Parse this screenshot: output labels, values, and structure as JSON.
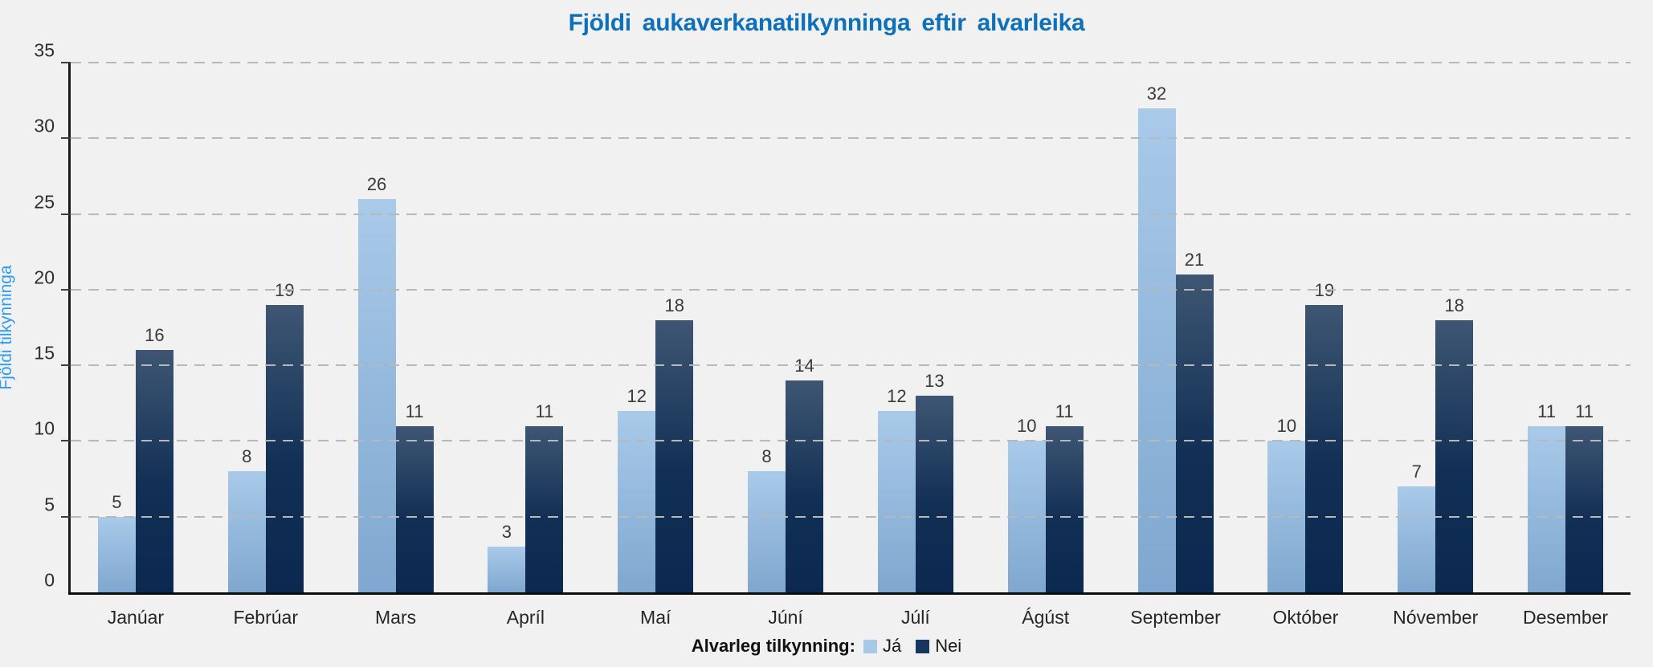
{
  "chart_data": {
    "type": "bar",
    "title": "Fjöldi aukaverkanatilkynninga eftir alvarleika",
    "ylabel": "Fjöldi tilkynninga",
    "xlabel": "",
    "categories": [
      "Janúar",
      "Febrúar",
      "Mars",
      "Apríl",
      "Maí",
      "Júní",
      "Júlí",
      "Ágúst",
      "September",
      "Október",
      "Nóvember",
      "Desember"
    ],
    "series": [
      {
        "name": "Já",
        "swatch_color": "#a6c9e8",
        "values": [
          5,
          8,
          26,
          3,
          12,
          8,
          12,
          10,
          32,
          10,
          7,
          11
        ]
      },
      {
        "name": "Nei",
        "swatch_color": "#17375e",
        "values": [
          16,
          19,
          11,
          11,
          18,
          14,
          13,
          11,
          21,
          19,
          18,
          11
        ]
      }
    ],
    "ylim": [
      0,
      35
    ],
    "yticks": [
      0,
      5,
      10,
      15,
      20,
      25,
      30,
      35
    ],
    "grid": "horizontal-dashed",
    "legend_title": "Alvarleg tilkynning:",
    "legend_position": "bottom",
    "bar_labels_shown": true
  },
  "colors": {
    "background": "#f1f1f2",
    "title_text": "#0e70b8",
    "y_axis_title_text": "#2e9bf2",
    "bar_ja_top": "#a9cae9",
    "bar_ja_bottom": "#7fa7cf",
    "bar_nei_top": "#3e5673",
    "bar_nei_bottom": "#0b2950",
    "gridline": "#b8b8b8",
    "axis_line": "#1a1a1a",
    "tick_text": "#2e2e2e",
    "value_label_text": "#3a3a3a"
  }
}
